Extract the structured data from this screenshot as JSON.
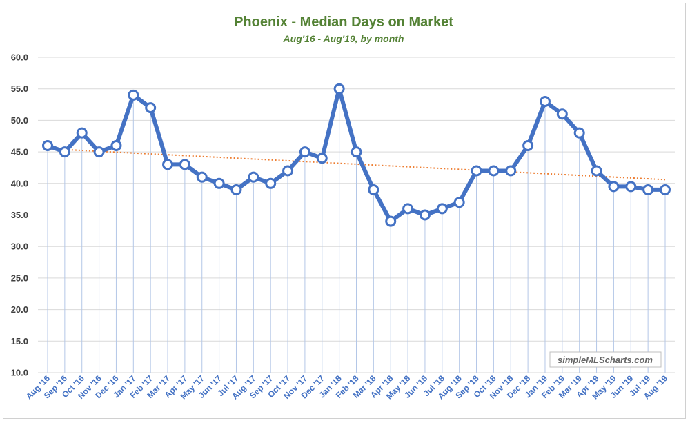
{
  "chart_data": {
    "type": "line",
    "title": "Phoenix - Median Days on Market",
    "subtitle": "Aug'16 - Aug'19, by month",
    "watermark": "simpleMLScharts.com",
    "xlabel": "",
    "ylabel": "",
    "ylim": [
      10,
      60
    ],
    "yticks": [
      "10.0",
      "15.0",
      "20.0",
      "25.0",
      "30.0",
      "35.0",
      "40.0",
      "45.0",
      "50.0",
      "55.0",
      "60.0"
    ],
    "grid": true,
    "legend": "none",
    "categories": [
      "Aug '16",
      "Sep '16",
      "Oct '16",
      "Nov '16",
      "Dec '16",
      "Jan '17",
      "Feb '17",
      "Mar '17",
      "Apr '17",
      "May '17",
      "Jun '17",
      "Jul '17",
      "Aug '17",
      "Sep '17",
      "Oct '17",
      "Nov '17",
      "Dec '17",
      "Jan '18",
      "Feb '18",
      "Mar '18",
      "Apr '18",
      "May '18",
      "Jun '18",
      "Jul '18",
      "Aug '18",
      "Sep '18",
      "Oct '18",
      "Nov '18",
      "Dec '18",
      "Jan '19",
      "Feb '19",
      "Mar '19",
      "Apr '19",
      "May '19",
      "Jun '19",
      "Jul '19",
      "Aug '19"
    ],
    "series": [
      {
        "values": [
          46,
          45,
          48,
          45,
          46,
          54,
          52,
          43,
          43,
          41,
          40,
          39,
          41,
          40,
          42,
          45,
          44,
          55,
          45,
          39,
          34,
          36,
          35,
          36,
          37,
          42,
          42,
          42,
          46,
          53,
          51,
          48,
          42,
          39.5,
          39.5,
          39,
          39
        ],
        "color": "#4472c4"
      }
    ],
    "trendline": {
      "type": "linear",
      "start": 45.5,
      "end": 40.6,
      "color": "#ed7d31"
    }
  }
}
